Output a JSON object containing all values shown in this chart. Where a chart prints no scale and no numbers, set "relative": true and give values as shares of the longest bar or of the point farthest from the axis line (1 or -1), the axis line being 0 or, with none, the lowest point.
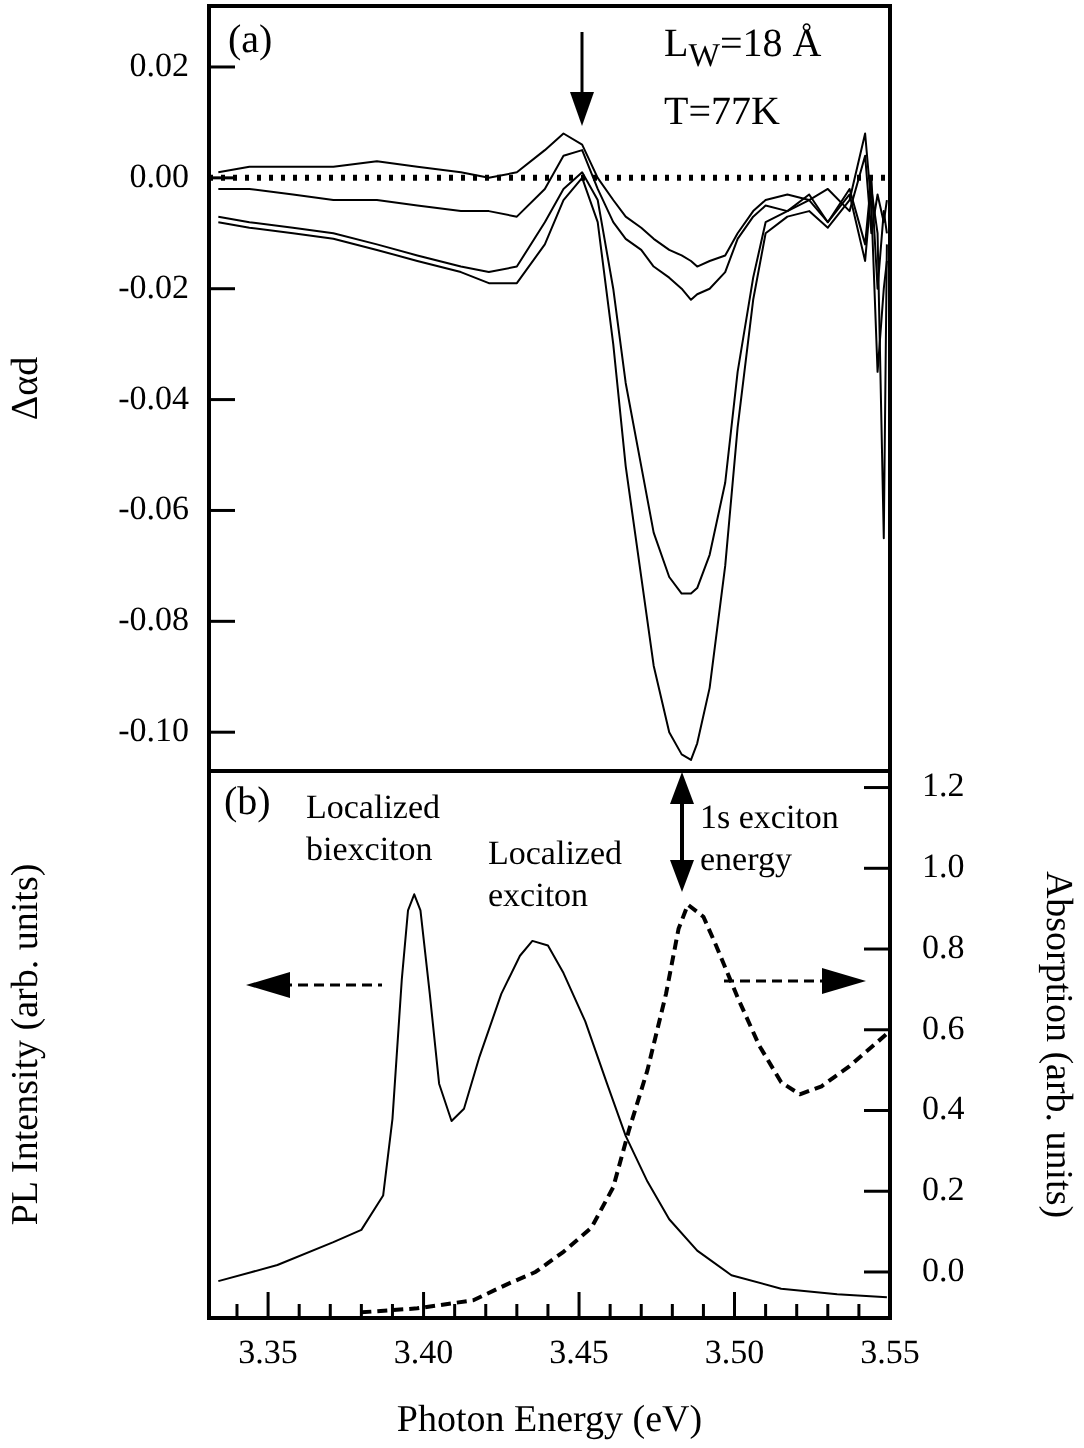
{
  "chart_data": [
    {
      "type": "line",
      "ylabel": "Δαd",
      "tick_labels": "y",
      "xlim": [
        3.331,
        3.55
      ],
      "ylim": [
        -0.107,
        0.031
      ],
      "yticks": [
        0.02,
        {
          "value": 0,
          "label": "0.00"
        },
        -0.02,
        -0.04,
        -0.06,
        -0.08,
        {
          "value": -0.1,
          "label": "-0.10"
        }
      ],
      "x": [
        3.334,
        3.344,
        3.358,
        3.371,
        3.385,
        3.398,
        3.412,
        3.421,
        3.43,
        3.439,
        3.445,
        3.451,
        3.456,
        3.461,
        3.465,
        3.47,
        3.474,
        3.479,
        3.483,
        3.486,
        3.488,
        3.492,
        3.497,
        3.501,
        3.506,
        3.51,
        3.517,
        3.524,
        3.53,
        3.537,
        3.542,
        3.544,
        3.546,
        3.548,
        3.549
      ],
      "series": [
        {
          "color": "#000000",
          "values": [
            0.001,
            0.002,
            0.002,
            0.002,
            0.003,
            0.002,
            0.001,
            0.0,
            0.001,
            0.005,
            0.008,
            0.006,
            0.0,
            -0.004,
            -0.007,
            -0.009,
            -0.011,
            -0.013,
            -0.014,
            -0.015,
            -0.016,
            -0.015,
            -0.014,
            -0.01,
            -0.006,
            -0.004,
            -0.003,
            -0.004,
            -0.002,
            -0.006,
            0.004,
            -0.01,
            -0.003,
            -0.008,
            -0.004
          ]
        },
        {
          "color": "#000000",
          "values": [
            -0.002,
            -0.002,
            -0.003,
            -0.004,
            -0.004,
            -0.005,
            -0.006,
            -0.006,
            -0.007,
            -0.002,
            0.004,
            0.005,
            -0.002,
            -0.008,
            -0.011,
            -0.013,
            -0.016,
            -0.018,
            -0.02,
            -0.022,
            -0.021,
            -0.02,
            -0.017,
            -0.011,
            -0.007,
            -0.005,
            -0.006,
            -0.003,
            -0.008,
            -0.002,
            -0.012,
            0.0,
            -0.02,
            -0.006,
            -0.01
          ]
        },
        {
          "color": "#000000",
          "values": [
            -0.007,
            -0.008,
            -0.009,
            -0.01,
            -0.012,
            -0.014,
            -0.016,
            -0.017,
            -0.016,
            -0.008,
            -0.002,
            0.001,
            -0.004,
            -0.02,
            -0.037,
            -0.052,
            -0.064,
            -0.072,
            -0.075,
            -0.075,
            -0.074,
            -0.068,
            -0.055,
            -0.035,
            -0.018,
            -0.008,
            -0.006,
            -0.004,
            -0.008,
            -0.003,
            -0.015,
            -0.002,
            -0.01,
            -0.065,
            -0.012
          ]
        },
        {
          "color": "#000000",
          "values": [
            -0.008,
            -0.009,
            -0.01,
            -0.011,
            -0.013,
            -0.015,
            -0.017,
            -0.019,
            -0.019,
            -0.012,
            -0.004,
            0.0,
            -0.008,
            -0.03,
            -0.052,
            -0.072,
            -0.088,
            -0.1,
            -0.104,
            -0.105,
            -0.102,
            -0.092,
            -0.07,
            -0.045,
            -0.022,
            -0.01,
            -0.007,
            -0.006,
            -0.009,
            -0.004,
            0.008,
            -0.005,
            -0.035,
            -0.02,
            -0.015
          ]
        }
      ],
      "ref_lines": [
        {
          "axis": "y",
          "value": 0,
          "line_style": "dotted",
          "color": "#000000"
        }
      ],
      "annotations": [
        "(a)",
        "L$_{W}$=18 Å",
        "T=77K"
      ]
    },
    {
      "type": "line",
      "xlabel": "Photon Energy (eV)",
      "ylabel": "PL Intensity (arb. units)",
      "y2label": "Absorption (arb. units)",
      "xlim": [
        3.331,
        3.55
      ],
      "xticks": [
        {
          "value": 3.34,
          "label": null
        },
        3.35,
        {
          "value": 3.36,
          "label": null
        },
        {
          "value": 3.37,
          "label": null
        },
        {
          "value": 3.38,
          "label": null
        },
        {
          "value": 3.39,
          "label": null
        },
        {
          "value": 3.4,
          "label": "3.40"
        },
        {
          "value": 3.41,
          "label": null
        },
        {
          "value": 3.42,
          "label": null
        },
        {
          "value": 3.43,
          "label": null
        },
        {
          "value": 3.44,
          "label": null
        },
        3.45,
        {
          "value": 3.46,
          "label": null
        },
        {
          "value": 3.47,
          "label": null
        },
        {
          "value": 3.48,
          "label": null
        },
        {
          "value": 3.49,
          "label": null
        },
        {
          "value": 3.5,
          "label": "3.50"
        },
        {
          "value": 3.51,
          "label": null
        },
        {
          "value": 3.52,
          "label": null
        },
        {
          "value": 3.53,
          "label": null
        },
        {
          "value": 3.54,
          "label": null
        },
        3.55
      ],
      "relative": true,
      "y2lim": [
        -0.114,
        1.241
      ],
      "y2ticks": [
        {
          "value": 0,
          "label": "0.0"
        },
        0.2,
        0.4,
        0.6,
        0.8,
        {
          "value": 1,
          "label": "1.0"
        },
        1.2
      ],
      "series": [
        {
          "color": "#000000",
          "line_style": "solid",
          "x": [
            3.334,
            3.353,
            3.371,
            3.38,
            3.387,
            3.39,
            3.393,
            3.395,
            3.397,
            3.399,
            3.402,
            3.405,
            3.409,
            3.413,
            3.418,
            3.425,
            3.431,
            3.435,
            3.44,
            3.445,
            3.452,
            3.459,
            3.465,
            3.472,
            3.479,
            3.488,
            3.499,
            3.515,
            3.533,
            3.549
          ],
          "values": [
            0.087,
            0.125,
            0.179,
            0.208,
            0.289,
            0.47,
            0.799,
            0.962,
            1,
            0.962,
            0.765,
            0.553,
            0.465,
            0.494,
            0.617,
            0.765,
            0.855,
            0.89,
            0.879,
            0.814,
            0.7,
            0.553,
            0.43,
            0.322,
            0.233,
            0.159,
            0.101,
            0.069,
            0.056,
            0.049
          ]
        },
        {
          "color": "#000000",
          "line_style": "dashed",
          "axis": "y2",
          "x": [
            3.38,
            3.398,
            3.416,
            3.427,
            3.436,
            3.445,
            3.454,
            3.461,
            3.466,
            3.472,
            3.478,
            3.482,
            3.485,
            3.49,
            3.494,
            3.501,
            3.508,
            3.515,
            3.521,
            3.528,
            3.537,
            3.549
          ],
          "values": [
            -0.1,
            -0.09,
            -0.07,
            -0.03,
            0.0,
            0.05,
            0.11,
            0.21,
            0.35,
            0.5,
            0.69,
            0.85,
            0.91,
            0.88,
            0.81,
            0.68,
            0.56,
            0.47,
            0.44,
            0.46,
            0.51,
            0.59
          ]
        }
      ],
      "annotations": [
        "(b)",
        "Localized biexciton",
        "Localized exciton",
        "1s exciton energy"
      ]
    }
  ]
}
